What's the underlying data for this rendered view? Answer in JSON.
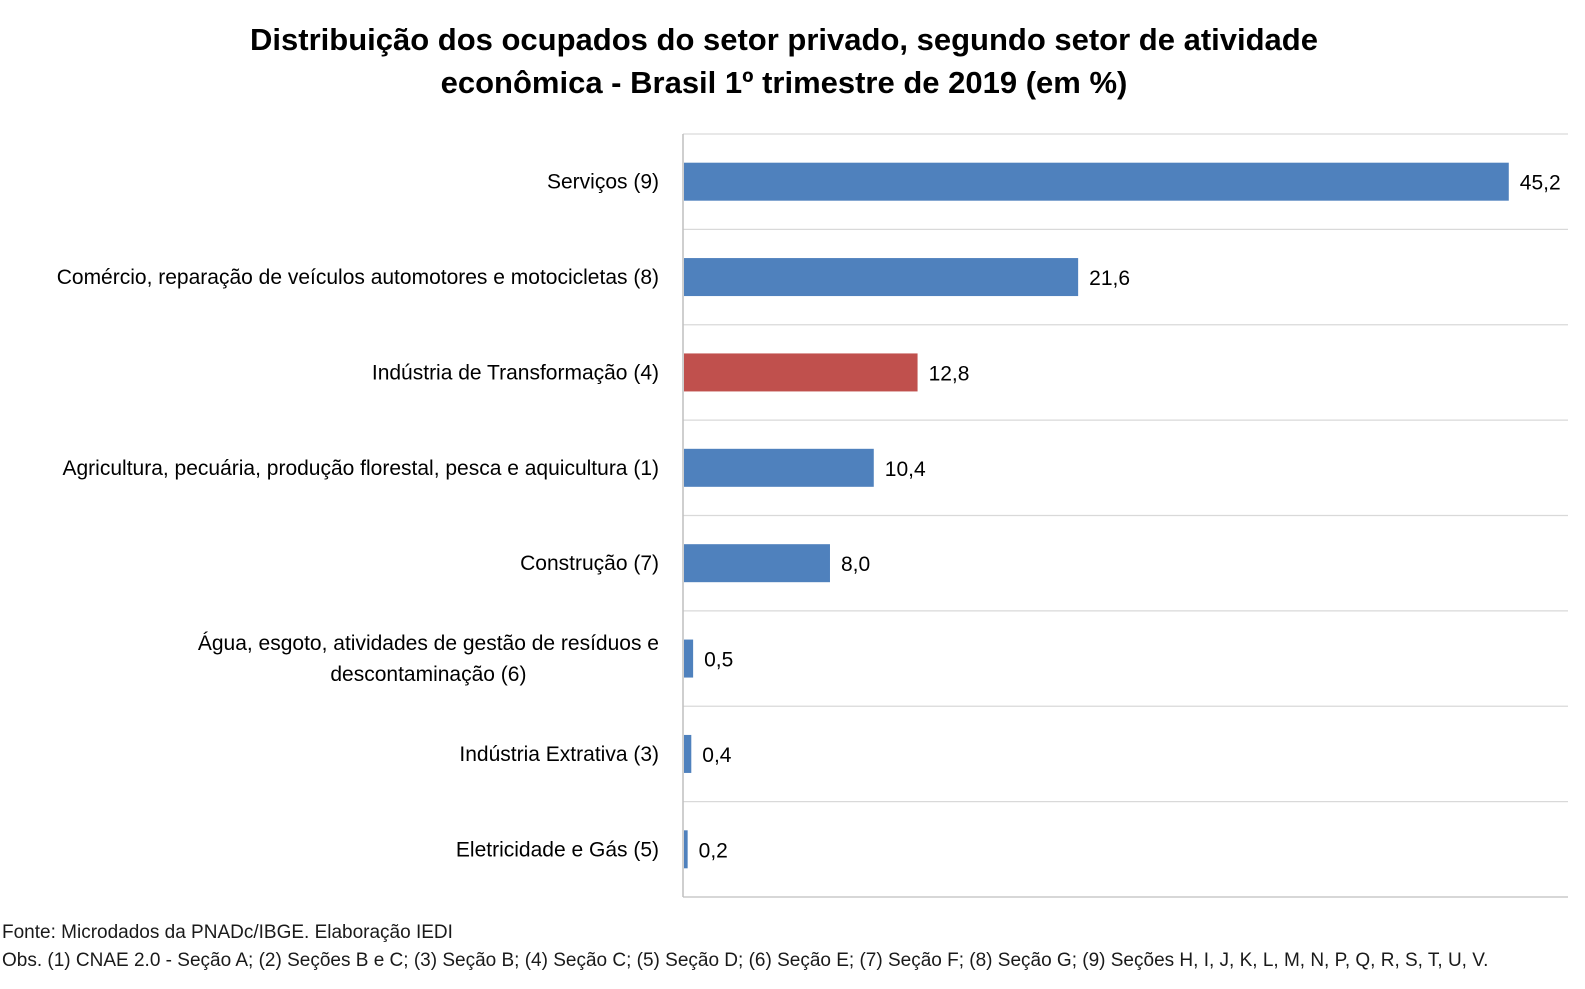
{
  "chart_data": {
    "type": "bar",
    "orientation": "horizontal",
    "title_lines": [
      "Distribuição dos ocupados do setor privado, segundo setor de atividade",
      "econômica - Brasil 1º trimestre de 2019 (em %)"
    ],
    "xlabel": "",
    "ylabel": "",
    "xlim": [
      0,
      48.5
    ],
    "grid": "horizontal separators between categories",
    "legend": "none",
    "colors": {
      "default_bar": "#4f81bd",
      "highlight_bar": "#c0504d",
      "grid": "#d9d9d9",
      "axis": "#bfbfbf"
    },
    "categories": [
      {
        "label_lines": [
          "Serviços (9)"
        ],
        "value": 45.2,
        "value_label": "45,2",
        "highlight": false
      },
      {
        "label_lines": [
          "Comércio, reparação de veículos automotores e motocicletas (8)"
        ],
        "value": 21.6,
        "value_label": "21,6",
        "highlight": false
      },
      {
        "label_lines": [
          "Indústria de Transformação (4)"
        ],
        "value": 12.8,
        "value_label": "12,8",
        "highlight": true
      },
      {
        "label_lines": [
          "Agricultura, pecuária, produção florestal, pesca e aquicultura (1)"
        ],
        "value": 10.4,
        "value_label": "10,4",
        "highlight": false
      },
      {
        "label_lines": [
          "Construção (7)"
        ],
        "value": 8.0,
        "value_label": "8,0",
        "highlight": false
      },
      {
        "label_lines": [
          "Água, esgoto, atividades de gestão de resíduos e",
          "descontaminação (6)"
        ],
        "value": 0.5,
        "value_label": "0,5",
        "highlight": false
      },
      {
        "label_lines": [
          "Indústria Extrativa (3)"
        ],
        "value": 0.4,
        "value_label": "0,4",
        "highlight": false
      },
      {
        "label_lines": [
          "Eletricidade e Gás (5)"
        ],
        "value": 0.2,
        "value_label": "0,2",
        "highlight": false
      }
    ]
  },
  "footnotes": {
    "source": "Fonte: Microdados da PNADc/IBGE. Elaboração IEDI",
    "obs": "Obs. (1) CNAE 2.0 - Seção A; (2) Seções B e C; (3) Seção B; (4) Seção C; (5) Seção D; (6) Seção E; (7) Seção F; (8) Seção G; (9) Seções H, I, J, K, L, M, N, P, Q, R, S, T, U, V."
  }
}
